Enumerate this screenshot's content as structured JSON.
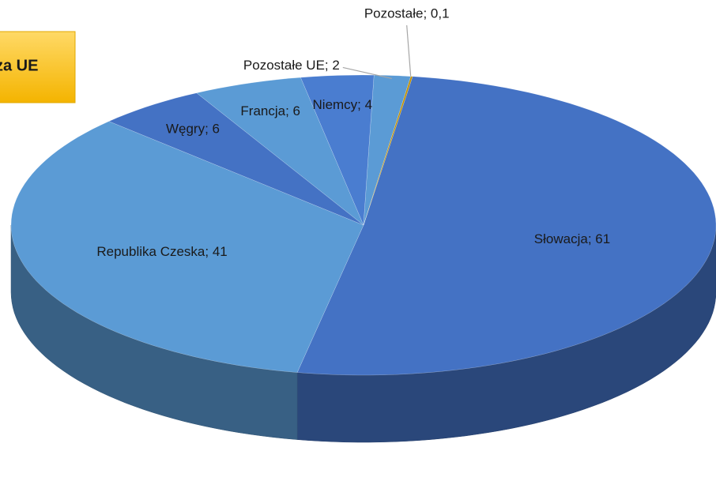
{
  "chart_data": {
    "type": "pie",
    "annotation": "za UE",
    "categories": [
      "Słowacja",
      "Republika Czeska",
      "Węgry",
      "Francja",
      "Niemcy",
      "Pozostałe UE",
      "Pozostałe"
    ],
    "values": [
      61,
      41,
      6,
      6,
      4,
      2,
      0.1
    ],
    "value_labels": [
      "Słowacja; 61",
      "Republika Czeska; 41",
      "Węgry; 6",
      "Francja; 6",
      "Niemcy; 4",
      "Pozostałe UE; 2",
      "Pozostałe;  0,1"
    ],
    "colors": [
      "#4472c4",
      "#5b9bd5",
      "#4472c4",
      "#5b9bd5",
      "#4a7dd0",
      "#5b9bd5",
      "#c09000"
    ]
  }
}
